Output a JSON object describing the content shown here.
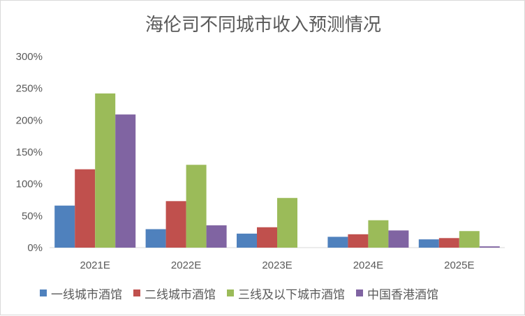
{
  "chart_data": {
    "type": "bar",
    "title": "海伦司不同城市收入预测情况",
    "categories": [
      "2021E",
      "2022E",
      "2023E",
      "2024E",
      "2025E"
    ],
    "series": [
      {
        "name": "一线城市酒馆",
        "color": "#4f81bd",
        "values": [
          0.66,
          0.29,
          0.22,
          0.17,
          0.13
        ]
      },
      {
        "name": "二线城市酒馆",
        "color": "#c0504d",
        "values": [
          1.23,
          0.73,
          0.32,
          0.21,
          0.15
        ]
      },
      {
        "name": "三线及以下城市酒馆",
        "color": "#9bbb59",
        "values": [
          2.42,
          1.3,
          0.78,
          0.43,
          0.26
        ]
      },
      {
        "name": "中国香港酒馆",
        "color": "#8064a2",
        "values": [
          2.09,
          0.35,
          0.0,
          0.27,
          0.02
        ]
      }
    ],
    "ylim": [
      0,
      3
    ],
    "yticks": [
      "0%",
      "50%",
      "100%",
      "150%",
      "200%",
      "250%",
      "300%"
    ],
    "grid": false,
    "legend_position": "bottom"
  }
}
